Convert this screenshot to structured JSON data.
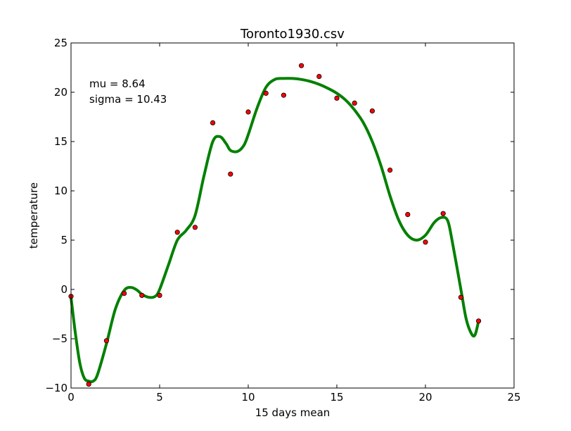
{
  "chart_data": {
    "type": "scatter",
    "title": "Toronto1930.csv",
    "xlabel": "15 days mean",
    "ylabel": "temperature",
    "xlim": [
      0,
      25
    ],
    "ylim": [
      -10,
      25
    ],
    "xticks": [
      "0",
      "5",
      "10",
      "15",
      "20",
      "25"
    ],
    "yticks": [
      "−10",
      "−5",
      "0",
      "5",
      "10",
      "15",
      "20",
      "25"
    ],
    "grid": false,
    "annotations": [
      "mu = 8.64",
      "sigma = 10.43"
    ],
    "series": [
      {
        "kind": "points",
        "color": "#ff0000",
        "x": [
          0,
          1,
          2,
          3,
          4,
          5,
          6,
          7,
          8,
          9,
          10,
          11,
          12,
          13,
          14,
          15,
          16,
          17,
          18,
          19,
          20,
          21,
          22,
          23
        ],
        "y": [
          -0.7,
          -9.6,
          -5.2,
          -0.4,
          -0.6,
          -0.6,
          5.8,
          6.3,
          16.9,
          11.7,
          18.0,
          19.9,
          19.7,
          22.7,
          21.6,
          19.4,
          18.9,
          18.1,
          12.1,
          7.6,
          4.8,
          7.7,
          -0.8,
          -3.2
        ]
      },
      {
        "kind": "curve",
        "color": "#008000",
        "x": [
          0,
          0.25,
          0.5,
          0.75,
          1,
          1.25,
          1.5,
          2,
          2.5,
          3,
          3.4,
          3.75,
          4,
          4.4,
          4.75,
          5,
          5.5,
          6,
          6.5,
          7,
          7.5,
          8,
          8.4,
          8.75,
          9,
          9.4,
          9.75,
          10,
          10.5,
          11,
          11.5,
          12,
          12.5,
          13,
          13.5,
          14,
          14.5,
          15,
          15.5,
          16,
          16.5,
          17,
          17.5,
          18,
          18.5,
          19,
          19.5,
          20,
          20.5,
          20.9,
          21.25,
          21.5,
          22,
          22.3,
          22.6,
          22.8,
          23
        ],
        "y": [
          -0.8,
          -4.5,
          -7.5,
          -9.0,
          -9.3,
          -9.3,
          -8.6,
          -5.5,
          -2.0,
          -0.1,
          0.2,
          -0.1,
          -0.5,
          -0.8,
          -0.7,
          0.0,
          2.5,
          5.0,
          6.0,
          7.5,
          11.5,
          15.0,
          15.5,
          14.8,
          14.1,
          14.0,
          14.6,
          15.7,
          18.4,
          20.5,
          21.3,
          21.4,
          21.4,
          21.3,
          21.1,
          20.8,
          20.4,
          19.9,
          19.2,
          18.2,
          16.9,
          15.0,
          12.5,
          9.5,
          7.0,
          5.5,
          5.0,
          5.5,
          6.8,
          7.3,
          7.0,
          5.0,
          0.0,
          -3.0,
          -4.5,
          -4.6,
          -3.2
        ]
      }
    ]
  }
}
